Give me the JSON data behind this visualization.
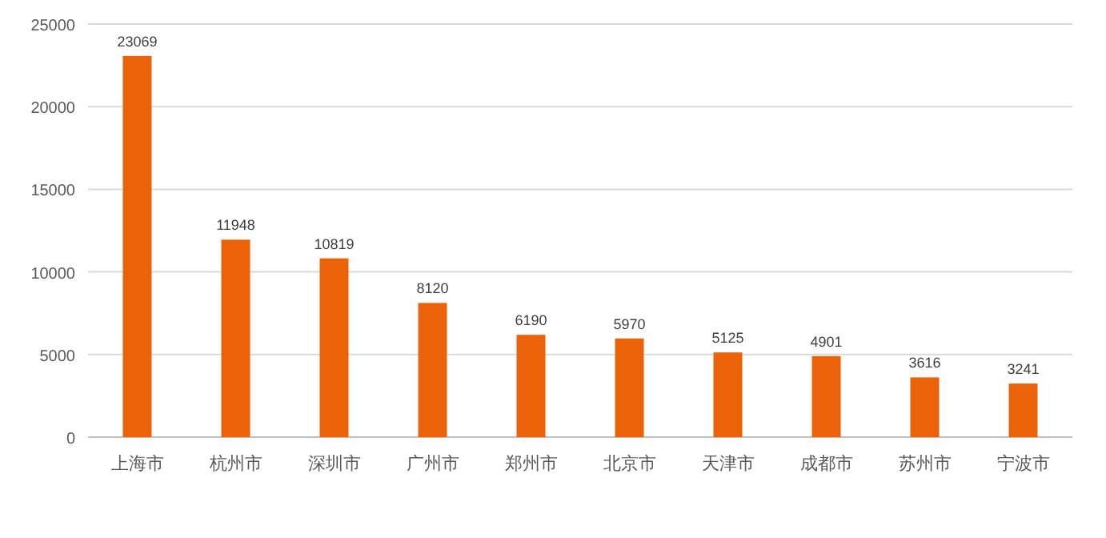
{
  "chart_data": {
    "type": "bar",
    "categories": [
      "上海市",
      "杭州市",
      "深圳市",
      "广州市",
      "郑州市",
      "北京市",
      "天津市",
      "成都市",
      "苏州市",
      "宁波市"
    ],
    "values": [
      23069,
      11948,
      10819,
      8120,
      6190,
      5970,
      5125,
      4901,
      3616,
      3241
    ],
    "color": "#eb6209",
    "ylim": [
      0,
      25000
    ],
    "yticks": [
      0,
      5000,
      10000,
      15000,
      20000,
      25000
    ],
    "grid": "y",
    "data_labels": true
  }
}
